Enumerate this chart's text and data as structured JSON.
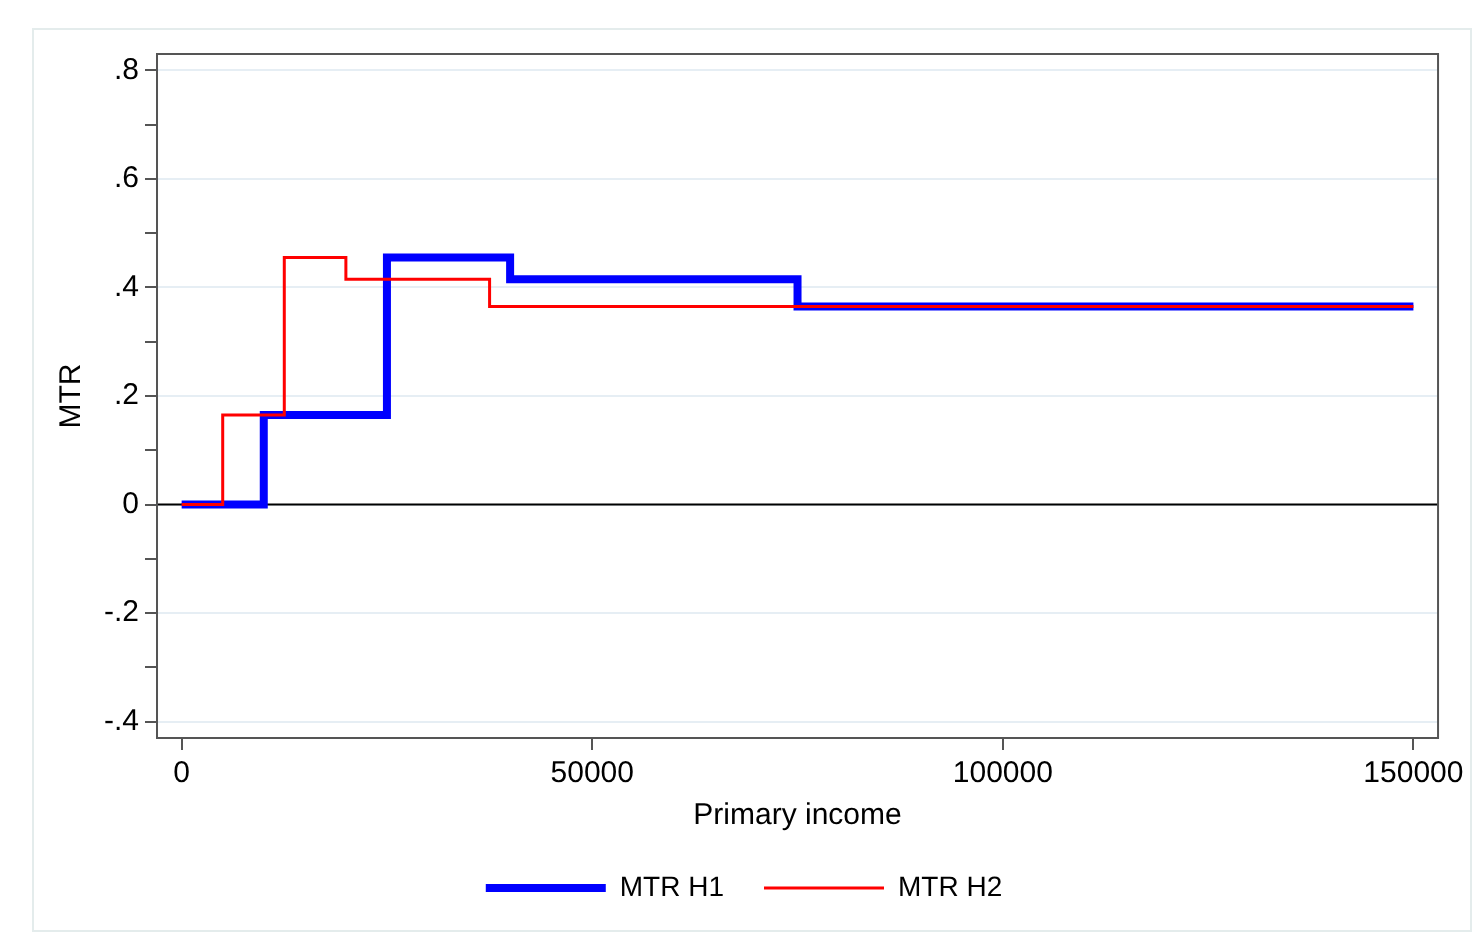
{
  "chart_data": {
    "type": "step",
    "xlabel": "Primary income",
    "ylabel": "MTR",
    "series": [
      {
        "name": "MTR H1",
        "color": "#0000ff",
        "x": [
          0,
          10000,
          25000,
          40000,
          75000,
          150000
        ],
        "values": [
          0,
          0.165,
          0.455,
          0.415,
          0.365,
          0.365
        ]
      },
      {
        "name": "MTR H2",
        "color": "#ff0000",
        "x": [
          0,
          5000,
          12500,
          20000,
          37500,
          150000
        ],
        "values": [
          0,
          0.165,
          0.455,
          0.415,
          0.365,
          0.365
        ]
      }
    ],
    "xlim": [
      -3000,
      153000
    ],
    "xticks": [
      0,
      50000,
      100000,
      150000
    ],
    "ylim": [
      -0.43,
      0.83
    ],
    "yticks": [
      {
        "value": -0.4,
        "label": "-.4"
      },
      {
        "value": -0.3,
        "label": null
      },
      {
        "value": -0.2,
        "label": "-.2"
      },
      {
        "value": -0.1,
        "label": null
      },
      0,
      {
        "value": 0.1,
        "label": null
      },
      {
        "value": 0.2,
        "label": ".2"
      },
      {
        "value": 0.3,
        "label": null
      },
      {
        "value": 0.4,
        "label": ".4"
      },
      {
        "value": 0.5,
        "label": null
      },
      {
        "value": 0.6,
        "label": ".6"
      },
      {
        "value": 0.7,
        "label": null
      },
      {
        "value": 0.8,
        "label": ".8"
      }
    ],
    "ref_lines": [
      {
        "axis": "y",
        "value": 0,
        "color": "#000000"
      }
    ],
    "grid": "y",
    "legend": "bottom"
  }
}
